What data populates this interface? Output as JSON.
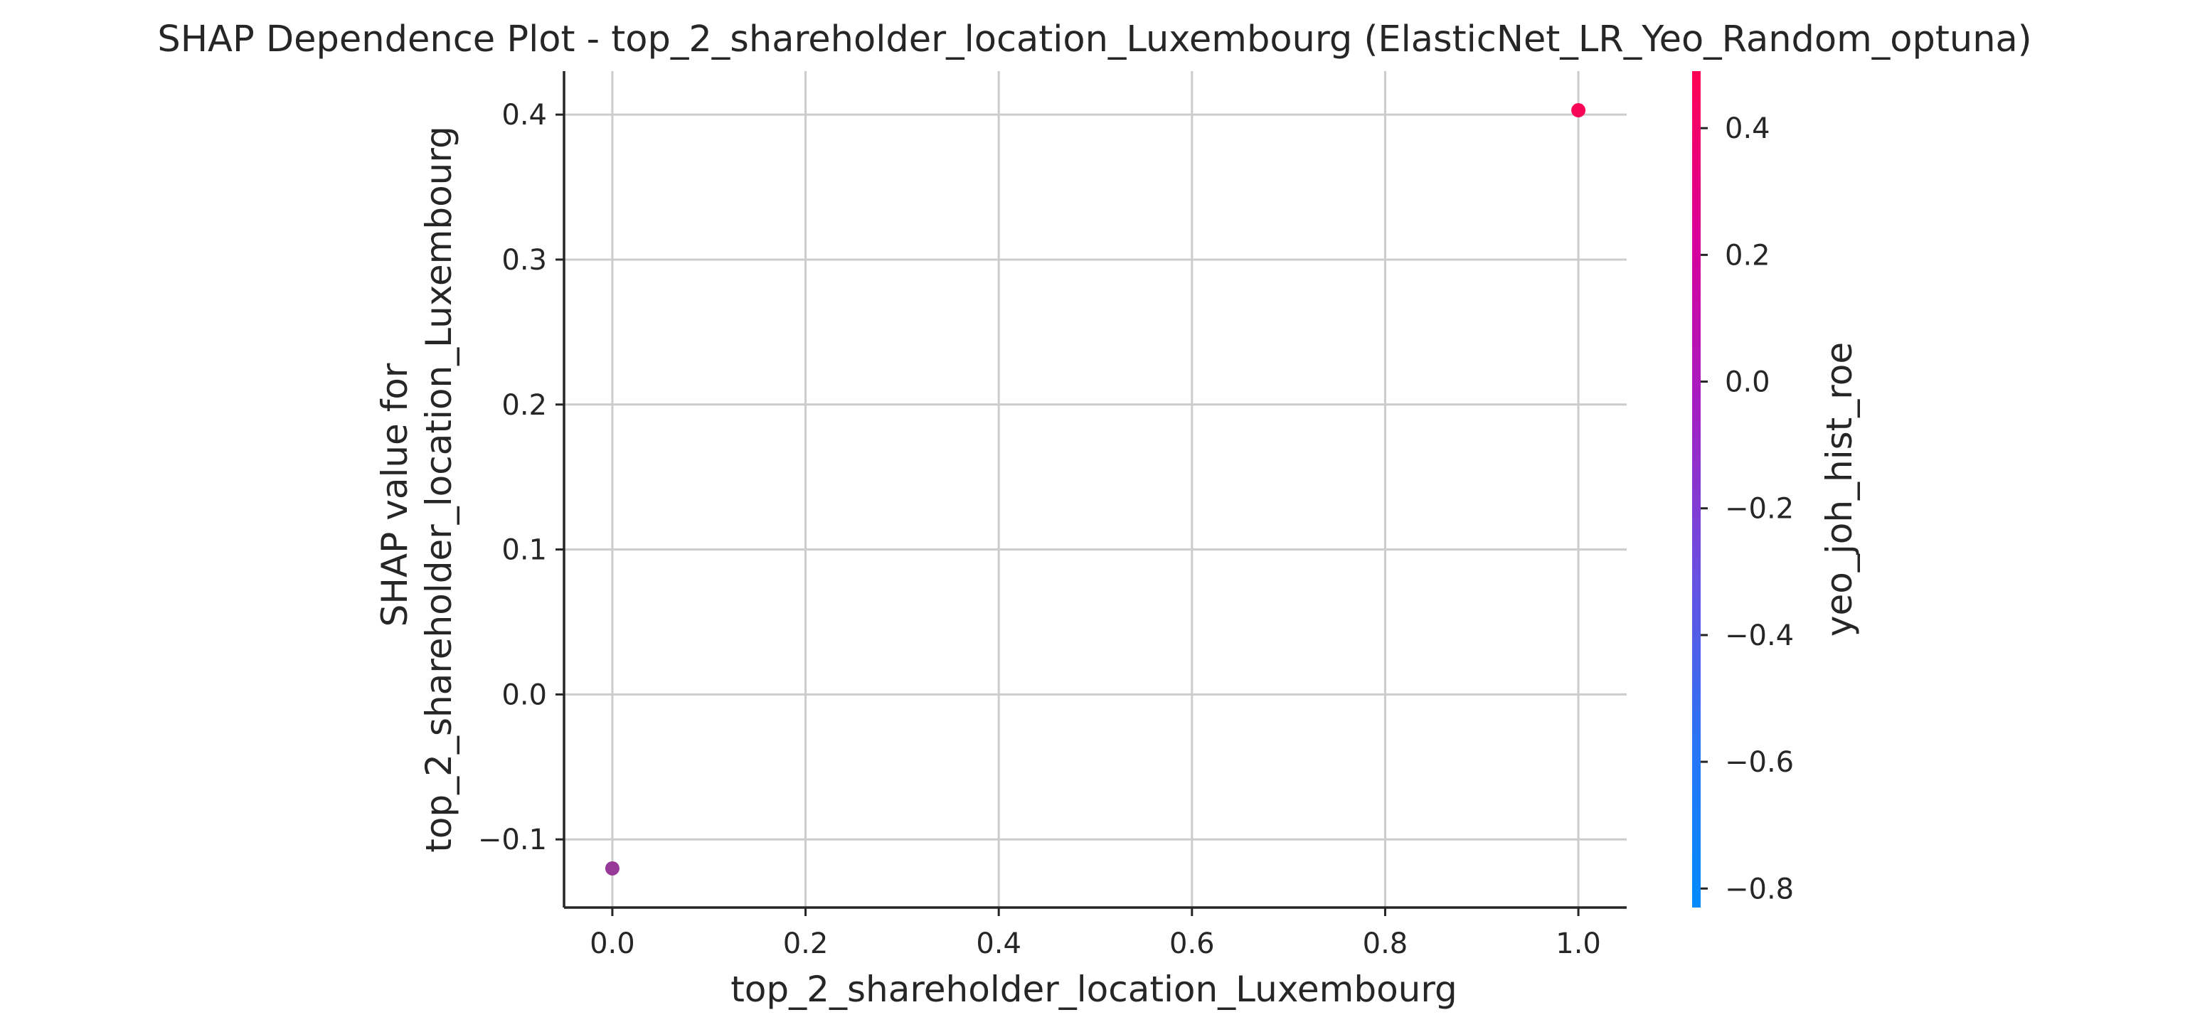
{
  "chart_data": {
    "type": "scatter",
    "title": "SHAP Dependence Plot - top_2_shareholder_location_Luxembourg (ElasticNet_LR_Yeo_Random_optuna)",
    "xlabel": "top_2_shareholder_location_Luxembourg",
    "ylabel": [
      "SHAP value for",
      "top_2_shareholder_location_Luxembourg"
    ],
    "xlim": [
      -0.05,
      1.05
    ],
    "ylim": [
      -0.147,
      0.43
    ],
    "x_ticks": [
      0.0,
      0.2,
      0.4,
      0.6,
      0.8,
      1.0
    ],
    "x_tick_labels": [
      "0.0",
      "0.2",
      "0.4",
      "0.6",
      "0.8",
      "1.0"
    ],
    "y_ticks": [
      -0.1,
      0.0,
      0.1,
      0.2,
      0.3,
      0.4
    ],
    "y_tick_labels": [
      "−0.1",
      "0.0",
      "0.1",
      "0.2",
      "0.3",
      "0.4"
    ],
    "grid": true,
    "points": [
      {
        "x": 0.0,
        "y": -0.12,
        "color_value": -0.05
      },
      {
        "x": 1.0,
        "y": 0.403,
        "color_value": 0.45
      }
    ],
    "colorbar": {
      "label": "yeo_joh_hist_roe",
      "range": [
        -0.83,
        0.49
      ],
      "ticks": [
        -0.8,
        -0.6,
        -0.4,
        -0.2,
        0.0,
        0.2,
        0.4
      ],
      "tick_labels": [
        "−0.8",
        "−0.6",
        "−0.4",
        "−0.2",
        "0.0",
        "0.2",
        "0.4"
      ],
      "colormap": [
        "#008bfb",
        "#ff0052"
      ]
    }
  }
}
